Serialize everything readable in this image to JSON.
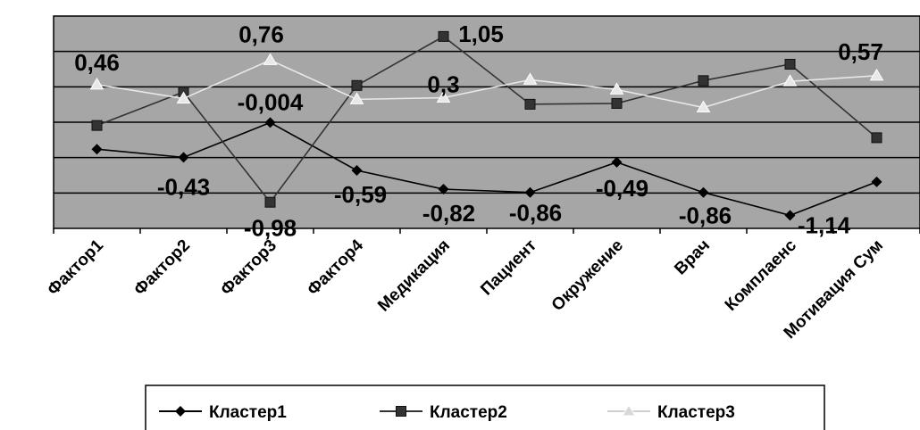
{
  "chart_data": {
    "type": "line",
    "categories": [
      "Фактор1",
      "Фактор2",
      "Фактор3",
      "Фактор4",
      "Медикация",
      "Пациент",
      "Окружение",
      "Врач",
      "Комплаенс",
      "Мотивация Сум"
    ],
    "series": [
      {
        "name": "Кластер1",
        "color": "#000000",
        "marker": "diamond",
        "values": [
          -0.33,
          -0.43,
          -0.004,
          -0.59,
          -0.82,
          -0.86,
          -0.49,
          -0.86,
          -1.14,
          -0.73
        ],
        "labels": [
          "",
          "-0,43",
          "-0,004",
          "-0,59",
          "-0,82",
          "-0,86",
          "-0,49",
          "-0,86",
          "-1,14",
          ""
        ]
      },
      {
        "name": "Кластер2",
        "color": "#333333",
        "marker": "square",
        "values": [
          -0.04,
          0.37,
          -0.98,
          0.45,
          1.05,
          0.22,
          0.23,
          0.51,
          0.71,
          -0.19
        ],
        "labels": [
          "",
          "",
          "-0,98",
          "",
          "1,05",
          "",
          "",
          "",
          "",
          ""
        ]
      },
      {
        "name": "Кластер3",
        "color": "#e8e8e8",
        "marker": "triangle",
        "values": [
          0.46,
          0.29,
          0.76,
          0.28,
          0.3,
          0.52,
          0.4,
          0.18,
          0.5,
          0.57
        ],
        "labels": [
          "0,46",
          "",
          "0,76",
          "",
          "0,3",
          "",
          "",
          "",
          "",
          "0,57"
        ]
      }
    ],
    "ylim": [
      -1.3,
      1.3
    ],
    "grid": true,
    "plot_background": "#a6a6a6",
    "legend": "bottom"
  }
}
